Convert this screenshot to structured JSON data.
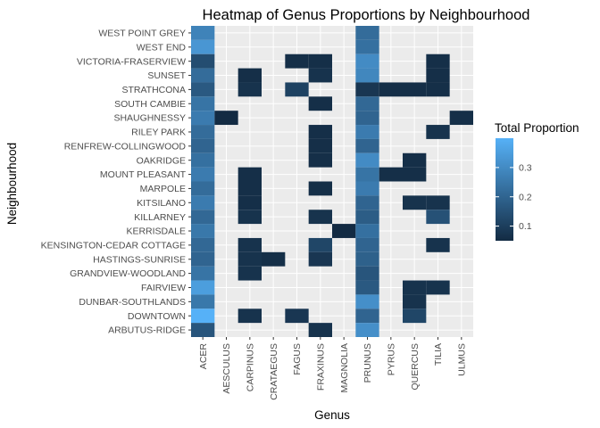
{
  "chart_data": {
    "type": "heatmap",
    "title": "Heatmap of Genus Proportions by Neighbourhood",
    "xlabel": "Genus",
    "ylabel": "Neighbourhood",
    "x": [
      "ACER",
      "AESCULUS",
      "CARPINUS",
      "CRATAEGUS",
      "FAGUS",
      "FRAXINUS",
      "MAGNOLIA",
      "PRUNUS",
      "PYRUS",
      "QUERCUS",
      "TILIA",
      "ULMUS"
    ],
    "y_top_to_bottom": [
      "WEST POINT GREY",
      "WEST END",
      "VICTORIA-FRASERVIEW",
      "SUNSET",
      "STRATHCONA",
      "SOUTH CAMBIE",
      "SHAUGHNESSY",
      "RILEY PARK",
      "RENFREW-COLLINGWOOD",
      "OAKRIDGE",
      "MOUNT PLEASANT",
      "MARPOLE",
      "KITSILANO",
      "KILLARNEY",
      "KERRISDALE",
      "KENSINGTON-CEDAR COTTAGE",
      "HASTINGS-SUNRISE",
      "GRANDVIEW-WOODLAND",
      "FAIRVIEW",
      "DUNBAR-SOUTHLANDS",
      "DOWNTOWN",
      "ARBUTUS-RIDGE"
    ],
    "values": [
      [
        0.28,
        null,
        null,
        null,
        null,
        null,
        null,
        0.22,
        null,
        null,
        null,
        null
      ],
      [
        0.33,
        null,
        null,
        null,
        null,
        null,
        null,
        0.23,
        null,
        null,
        null,
        null
      ],
      [
        0.14,
        null,
        null,
        null,
        0.06,
        0.06,
        null,
        0.3,
        null,
        null,
        0.06,
        null
      ],
      [
        0.22,
        null,
        0.06,
        null,
        null,
        0.07,
        null,
        0.29,
        null,
        null,
        0.06,
        null
      ],
      [
        0.17,
        null,
        0.07,
        null,
        0.11,
        null,
        null,
        0.08,
        0.06,
        0.06,
        0.06,
        null
      ],
      [
        0.24,
        null,
        null,
        null,
        null,
        0.06,
        null,
        0.21,
        null,
        null,
        null,
        null
      ],
      [
        0.26,
        0.05,
        null,
        null,
        null,
        null,
        null,
        0.2,
        null,
        null,
        null,
        0.06
      ],
      [
        0.22,
        null,
        null,
        null,
        null,
        0.06,
        null,
        0.26,
        null,
        null,
        0.07,
        null
      ],
      [
        0.2,
        null,
        null,
        null,
        null,
        0.06,
        null,
        0.2,
        null,
        null,
        null,
        null
      ],
      [
        0.23,
        null,
        null,
        null,
        null,
        0.06,
        null,
        0.3,
        null,
        0.06,
        null,
        null
      ],
      [
        0.26,
        null,
        0.06,
        null,
        null,
        null,
        null,
        0.24,
        0.06,
        0.06,
        null,
        null
      ],
      [
        0.22,
        null,
        0.06,
        null,
        null,
        0.06,
        null,
        0.26,
        null,
        null,
        null,
        null
      ],
      [
        0.26,
        null,
        0.06,
        null,
        null,
        null,
        null,
        0.2,
        null,
        0.07,
        0.07,
        null
      ],
      [
        0.21,
        null,
        0.07,
        null,
        null,
        0.07,
        null,
        0.18,
        null,
        null,
        0.15,
        null
      ],
      [
        0.25,
        null,
        null,
        null,
        null,
        null,
        0.05,
        0.23,
        null,
        null,
        null,
        null
      ],
      [
        0.21,
        null,
        0.07,
        null,
        null,
        0.12,
        null,
        0.2,
        null,
        null,
        0.07,
        null
      ],
      [
        0.2,
        null,
        0.07,
        0.06,
        null,
        0.08,
        null,
        0.19,
        null,
        null,
        null,
        null
      ],
      [
        0.24,
        null,
        0.07,
        null,
        null,
        null,
        null,
        0.16,
        null,
        null,
        null,
        null
      ],
      [
        0.35,
        null,
        null,
        null,
        null,
        null,
        null,
        0.17,
        null,
        0.07,
        0.07,
        null
      ],
      [
        0.25,
        null,
        null,
        null,
        null,
        null,
        null,
        0.31,
        null,
        0.07,
        null,
        null
      ],
      [
        0.4,
        null,
        0.07,
        null,
        0.08,
        null,
        null,
        0.2,
        null,
        0.12,
        null,
        null
      ],
      [
        0.16,
        null,
        null,
        null,
        null,
        0.07,
        null,
        0.31,
        null,
        null,
        null,
        null
      ]
    ],
    "color_scale": {
      "low": "#132b43",
      "high": "#56b1f7",
      "range": [
        0.05,
        0.4
      ],
      "breaks": [
        0.1,
        0.2,
        0.3
      ],
      "break_labels": [
        "0.1",
        "0.2",
        "0.3"
      ]
    },
    "legend_title": "Total Proportion",
    "legend_position": "right",
    "grid": true,
    "panel_background": "#ebebeb",
    "grid_color": "#ffffff"
  }
}
